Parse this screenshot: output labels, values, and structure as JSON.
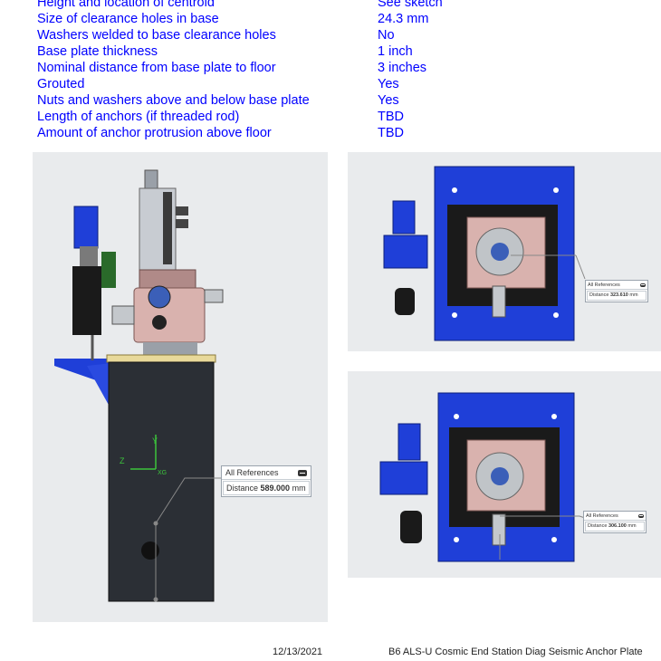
{
  "specs": [
    {
      "label": "Height and location of centroid",
      "value": "See sketch"
    },
    {
      "label": "Size of clearance holes in base",
      "value": "24.3 mm"
    },
    {
      "label": "Washers welded to base clearance holes",
      "value": "No"
    },
    {
      "label": "Base plate thickness",
      "value": "1 inch"
    },
    {
      "label": "Nominal distance from base plate to floor",
      "value": "3 inches"
    },
    {
      "label": "Grouted",
      "value": "Yes"
    },
    {
      "label": "Nuts and washers above and below base plate",
      "value": "Yes"
    },
    {
      "label": "Length of anchors (if threaded rod)",
      "value": "TBD"
    },
    {
      "label": "Amount of anchor protrusion above floor",
      "value": "TBD"
    }
  ],
  "measurements": {
    "side_view": {
      "header": "All References",
      "label": "Distance",
      "value": "589.000",
      "unit": "mm"
    },
    "top_view_1": {
      "header": "All References",
      "label": "Distance",
      "value": "323.610",
      "unit": "mm"
    },
    "top_view_2": {
      "header": "All References",
      "label": "Distance",
      "value": "306.100",
      "unit": "mm"
    }
  },
  "axes": {
    "z": "Z",
    "y": "Y",
    "origin": "XG"
  },
  "footer": {
    "date": "12/13/2021",
    "title": "B6 ALS-U Cosmic End Station Diag Seismic Anchor Plate"
  },
  "colors": {
    "spec_text": "#0000ff",
    "panel_bg": "#e9ebed",
    "base_plate": "#1f3fd8",
    "axis": "#3cc43c"
  }
}
